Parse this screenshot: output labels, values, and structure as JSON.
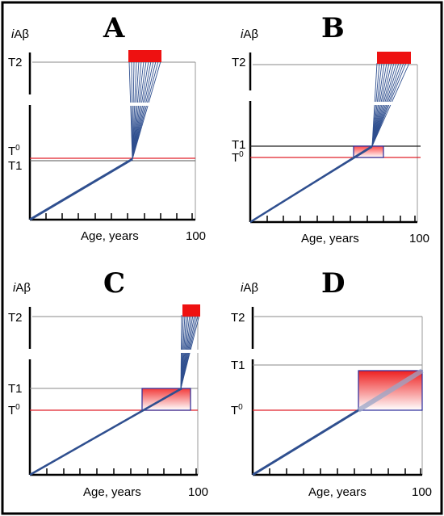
{
  "panels": [
    {
      "letter": "A",
      "y_label": "iAβ",
      "y_label_italic": "i",
      "y_label_rest": "Aβ",
      "t2": "T2",
      "t0_base": "T",
      "t0_sup": "0",
      "t1": "T1",
      "x_label": "Age, years",
      "x_max": "100"
    },
    {
      "letter": "B",
      "y_label_italic": "i",
      "y_label_rest": "Aβ",
      "t2": "T2",
      "t1": "T1",
      "t0_base": "T",
      "t0_sup": "0",
      "x_label": "Age, years",
      "x_max": "100"
    },
    {
      "letter": "C",
      "y_label_italic": "i",
      "y_label_rest": "Aβ",
      "t2": "T2",
      "t1": "T1",
      "t0_base": "T",
      "t0_sup": "0",
      "x_label": "Age, years",
      "x_max": "100"
    },
    {
      "letter": "D",
      "y_label_italic": "i",
      "y_label_rest": "Aβ",
      "t2": "T2",
      "t1": "T1",
      "t0_base": "T",
      "t0_sup": "0",
      "x_label": "Age, years",
      "x_max": "100"
    }
  ],
  "colors": {
    "frame": "#000000",
    "line": "#2f4f8f",
    "threshold_t0": "#e0202a",
    "threshold_black": "#444444",
    "red_block": "#ee1111",
    "box_border": "#2a2a9a"
  }
}
